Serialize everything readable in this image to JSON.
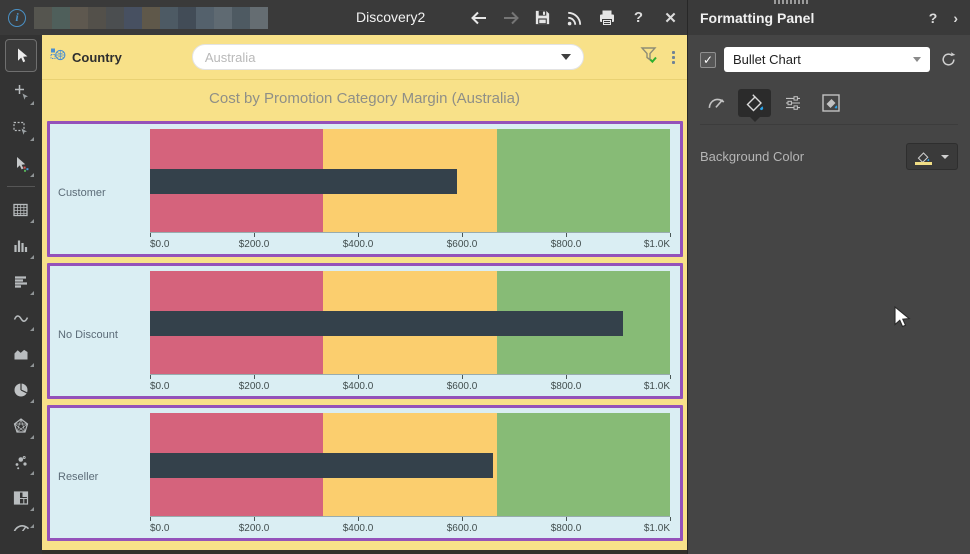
{
  "titlebar": {
    "title": "Discovery2",
    "redacted_block_colors": [
      "#55554f",
      "#4f5f5b",
      "#5e584f",
      "#53504a",
      "#4b4e50",
      "#475061",
      "#5f584a",
      "#4d5a64",
      "#424c57",
      "#54616c",
      "#5f6a72",
      "#4e5a62",
      "#656d72"
    ],
    "action_icons": [
      "back-arrow",
      "forward-arrow",
      "save",
      "data-feed",
      "print",
      "help",
      "close"
    ],
    "help_glyph": "?",
    "close_glyph": "✕"
  },
  "left_toolbar": {
    "tools": [
      "pointer",
      "add-element",
      "marquee-select",
      "format-pointer",
      "grid",
      "column-chart",
      "row-chart",
      "line-chart",
      "area-chart",
      "pie-chart",
      "radar-chart",
      "scatter-chart",
      "treemap",
      "gauge"
    ],
    "selected_tool": "pointer"
  },
  "filter_bar": {
    "field_label": "Country",
    "input_value": "",
    "input_placeholder": "Australia"
  },
  "chart_data": {
    "type": "bullet",
    "title": "Cost by Promotion Category Margin (Australia)",
    "categories": [
      "Customer",
      "No Discount",
      "Reseller"
    ],
    "values": [
      590,
      910,
      660
    ],
    "xlim": [
      0,
      1000
    ],
    "axis_ticks": [
      {
        "v": 0,
        "label": "$0.0"
      },
      {
        "v": 200,
        "label": "$200.0"
      },
      {
        "v": 400,
        "label": "$400.0"
      },
      {
        "v": 600,
        "label": "$600.0"
      },
      {
        "v": 800,
        "label": "$800.0"
      },
      {
        "v": 1000,
        "label": "$1.0K"
      }
    ],
    "bands": [
      {
        "from": 0,
        "to": 333,
        "color": "#d5637c"
      },
      {
        "from": 333,
        "to": 667,
        "color": "#fbce6e"
      },
      {
        "from": 667,
        "to": 1000,
        "color": "#87bb76"
      }
    ],
    "bar_color": "#34414b",
    "plot_background": "#daeef3",
    "border_color": "#9452ba",
    "legend": "off",
    "grid": "off"
  },
  "formatting_panel": {
    "title": "Formatting Panel",
    "help_glyph": "?",
    "collapse_glyph": "›",
    "chart_type_checked": "✓",
    "chart_type_value": "Bullet Chart",
    "tabs": [
      "gauge",
      "fill",
      "advanced-settings",
      "background-fill"
    ],
    "selected_tab": "fill",
    "background_color_label": "Background Color",
    "background_swatch_color": "#f0dd85"
  },
  "colors": {
    "canvas_background": "#f8e189",
    "titlebar_background": "#3a3a3a",
    "panel_background": "#454545",
    "accent_blue": "#4a90c4",
    "funnel_check_green": "#2eaf2e"
  }
}
